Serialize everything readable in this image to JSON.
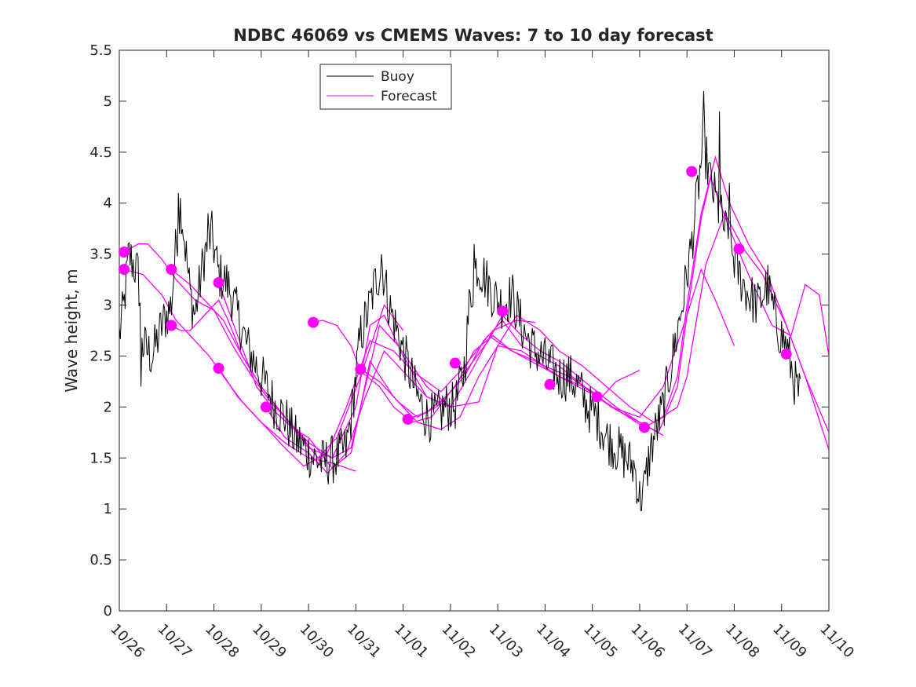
{
  "chart_data": {
    "type": "line",
    "title": "NDBC 46069 vs CMEMS Waves: 7 to 10 day forecast",
    "xlabel": "",
    "ylabel": "Wave height, m",
    "xlim": [
      0,
      15
    ],
    "ylim": [
      0,
      5.5
    ],
    "x_tick_labels": [
      "10/26",
      "10/27",
      "10/28",
      "10/29",
      "10/30",
      "10/31",
      "11/01",
      "11/02",
      "11/03",
      "11/04",
      "11/05",
      "11/06",
      "11/07",
      "11/08",
      "11/09",
      "11/10"
    ],
    "y_tick_labels": [
      "0",
      "0.5",
      "1",
      "1.5",
      "2",
      "2.5",
      "3",
      "3.5",
      "4",
      "4.5",
      "5",
      "5.5"
    ],
    "y_ticks": [
      0,
      0.5,
      1,
      1.5,
      2,
      2.5,
      3,
      3.5,
      4,
      4.5,
      5,
      5.5
    ],
    "grid": false,
    "legend": {
      "position": "top-left",
      "entries": [
        {
          "label": "Buoy",
          "color": "#000000"
        },
        {
          "label": "Forecast",
          "color": "#ff00ff"
        }
      ]
    },
    "colors": {
      "buoy": "#000000",
      "forecast": "#ff00ff",
      "axes": "#262626"
    },
    "buoy_anchors": [
      [
        0.0,
        2.7
      ],
      [
        0.1,
        3.0
      ],
      [
        0.2,
        3.5
      ],
      [
        0.4,
        3.3
      ],
      [
        0.5,
        2.6
      ],
      [
        0.7,
        2.5
      ],
      [
        0.9,
        2.8
      ],
      [
        1.1,
        3.0
      ],
      [
        1.2,
        3.6
      ],
      [
        1.3,
        4.0
      ],
      [
        1.5,
        3.1
      ],
      [
        1.6,
        2.9
      ],
      [
        1.8,
        3.5
      ],
      [
        1.95,
        3.7
      ],
      [
        2.1,
        3.3
      ],
      [
        2.3,
        3.2
      ],
      [
        2.5,
        2.9
      ],
      [
        2.7,
        2.6
      ],
      [
        2.9,
        2.4
      ],
      [
        3.1,
        2.2
      ],
      [
        3.3,
        2.0
      ],
      [
        3.5,
        1.9
      ],
      [
        3.7,
        1.7
      ],
      [
        3.9,
        1.6
      ],
      [
        4.1,
        1.5
      ],
      [
        4.3,
        1.45
      ],
      [
        4.6,
        1.5
      ],
      [
        4.8,
        1.6
      ],
      [
        4.9,
        1.9
      ],
      [
        5.0,
        2.3
      ],
      [
        5.1,
        2.7
      ],
      [
        5.3,
        3.0
      ],
      [
        5.4,
        3.2
      ],
      [
        5.55,
        3.4
      ],
      [
        5.7,
        3.0
      ],
      [
        5.9,
        2.7
      ],
      [
        6.1,
        2.4
      ],
      [
        6.3,
        2.1
      ],
      [
        6.5,
        1.9
      ],
      [
        6.7,
        1.9
      ],
      [
        6.9,
        2.0
      ],
      [
        7.1,
        2.0
      ],
      [
        7.3,
        2.4
      ],
      [
        7.4,
        3.0
      ],
      [
        7.55,
        3.4
      ],
      [
        7.7,
        3.3
      ],
      [
        7.9,
        3.1
      ],
      [
        8.1,
        3.0
      ],
      [
        8.3,
        3.1
      ],
      [
        8.5,
        2.8
      ],
      [
        8.7,
        2.6
      ],
      [
        8.9,
        2.5
      ],
      [
        9.1,
        2.4
      ],
      [
        9.3,
        2.3
      ],
      [
        9.5,
        2.3
      ],
      [
        9.7,
        2.2
      ],
      [
        9.9,
        2.0
      ],
      [
        10.1,
        1.9
      ],
      [
        10.3,
        1.7
      ],
      [
        10.5,
        1.6
      ],
      [
        10.7,
        1.5
      ],
      [
        10.9,
        1.4
      ],
      [
        11.0,
        1.1
      ],
      [
        11.1,
        1.2
      ],
      [
        11.2,
        1.5
      ],
      [
        11.3,
        1.7
      ],
      [
        11.5,
        2.0
      ],
      [
        11.7,
        2.5
      ],
      [
        11.9,
        3.0
      ],
      [
        12.1,
        3.6
      ],
      [
        12.2,
        4.0
      ],
      [
        12.35,
        4.6
      ],
      [
        12.5,
        4.2
      ],
      [
        12.7,
        3.9
      ],
      [
        12.9,
        3.6
      ],
      [
        13.1,
        3.3
      ],
      [
        13.3,
        3.1
      ],
      [
        13.5,
        3.0
      ],
      [
        13.7,
        3.2
      ],
      [
        13.9,
        2.8
      ],
      [
        14.1,
        2.6
      ],
      [
        14.3,
        2.2
      ],
      [
        14.4,
        2.1
      ]
    ],
    "buoy_spikes": [
      [
        1.25,
        4.1
      ],
      [
        1.88,
        3.9
      ],
      [
        12.35,
        5.1
      ],
      [
        12.68,
        4.9
      ],
      [
        7.5,
        3.6
      ],
      [
        5.55,
        3.5
      ],
      [
        12.9,
        4.2
      ],
      [
        0.45,
        2.2
      ],
      [
        10.95,
        1.1
      ]
    ],
    "forecast_series": [
      [
        [
          0.1,
          3.35
        ],
        [
          0.5,
          3.3
        ],
        [
          0.9,
          3.1
        ],
        [
          1.2,
          2.85
        ],
        [
          1.5,
          2.7
        ],
        [
          1.9,
          2.5
        ],
        [
          2.2,
          2.3
        ],
        [
          2.6,
          2.05
        ],
        [
          3.0,
          1.85
        ],
        [
          3.5,
          1.65
        ],
        [
          4.0,
          1.5
        ],
        [
          4.5,
          1.45
        ],
        [
          5.0,
          1.37
        ]
      ],
      [
        [
          0.1,
          3.52
        ],
        [
          0.4,
          3.6
        ],
        [
          0.6,
          3.6
        ],
        [
          0.9,
          3.45
        ],
        [
          1.2,
          3.25
        ],
        [
          1.6,
          3.05
        ],
        [
          2.0,
          2.95
        ],
        [
          2.4,
          2.6
        ],
        [
          2.8,
          2.3
        ],
        [
          3.2,
          2.05
        ],
        [
          3.7,
          1.8
        ],
        [
          4.2,
          1.5
        ],
        [
          4.6,
          1.7
        ],
        [
          5.1,
          2.3
        ],
        [
          5.6,
          3.0
        ],
        [
          6.0,
          2.75
        ]
      ],
      [
        [
          1.1,
          2.8
        ],
        [
          1.3,
          2.75
        ],
        [
          1.5,
          2.75
        ],
        [
          1.8,
          2.9
        ],
        [
          2.1,
          3.05
        ],
        [
          2.3,
          2.85
        ],
        [
          2.6,
          2.5
        ],
        [
          3.0,
          2.2
        ],
        [
          3.5,
          1.9
        ],
        [
          4.0,
          1.65
        ],
        [
          4.5,
          1.5
        ],
        [
          4.9,
          1.6
        ],
        [
          5.2,
          2.2
        ],
        [
          5.5,
          2.8
        ],
        [
          5.9,
          2.6
        ],
        [
          6.5,
          2.2
        ],
        [
          7.0,
          2.0
        ]
      ],
      [
        [
          1.1,
          3.35
        ],
        [
          1.5,
          3.2
        ],
        [
          1.9,
          3.0
        ],
        [
          2.2,
          2.85
        ],
        [
          2.6,
          2.5
        ],
        [
          3.0,
          2.2
        ],
        [
          3.5,
          1.9
        ],
        [
          4.0,
          1.6
        ],
        [
          4.5,
          1.5
        ],
        [
          5.0,
          2.0
        ],
        [
          5.3,
          2.8
        ],
        [
          5.6,
          2.9
        ],
        [
          6.0,
          2.5
        ],
        [
          6.5,
          2.1
        ],
        [
          7.0,
          2.0
        ],
        [
          7.5,
          2.4
        ],
        [
          7.9,
          2.75
        ],
        [
          8.4,
          2.85
        ],
        [
          8.8,
          2.83
        ]
      ],
      [
        [
          2.1,
          2.38
        ],
        [
          2.5,
          2.1
        ],
        [
          3.0,
          1.85
        ],
        [
          3.5,
          1.6
        ],
        [
          3.9,
          1.42
        ],
        [
          4.4,
          1.55
        ],
        [
          4.8,
          2.0
        ],
        [
          5.3,
          2.65
        ],
        [
          5.8,
          2.55
        ],
        [
          6.2,
          2.35
        ],
        [
          6.8,
          2.15
        ],
        [
          7.3,
          2.4
        ],
        [
          7.8,
          2.7
        ],
        [
          8.3,
          2.55
        ],
        [
          8.8,
          2.45
        ],
        [
          9.3,
          2.3
        ],
        [
          9.8,
          2.2
        ],
        [
          10.4,
          2.0
        ],
        [
          11.0,
          1.85
        ],
        [
          11.5,
          1.72
        ]
      ],
      [
        [
          2.1,
          3.22
        ],
        [
          2.5,
          2.7
        ],
        [
          2.9,
          2.2
        ],
        [
          3.3,
          1.95
        ],
        [
          3.7,
          1.78
        ],
        [
          4.0,
          1.7
        ],
        [
          4.5,
          1.4
        ],
        [
          4.9,
          1.55
        ],
        [
          5.3,
          2.45
        ],
        [
          5.8,
          2.1
        ],
        [
          6.3,
          1.85
        ],
        [
          6.8,
          1.78
        ],
        [
          7.2,
          1.9
        ],
        [
          7.6,
          2.3
        ],
        [
          8.0,
          2.6
        ],
        [
          8.5,
          2.55
        ],
        [
          9.0,
          2.4
        ],
        [
          9.5,
          2.3
        ],
        [
          10.0,
          2.15
        ],
        [
          10.4,
          2.0
        ],
        [
          11.0,
          1.9
        ],
        [
          11.5,
          2.2
        ],
        [
          12.0,
          2.9
        ],
        [
          12.3,
          3.35
        ],
        [
          12.6,
          3.05
        ],
        [
          13.0,
          2.6
        ]
      ],
      [
        [
          3.1,
          2.0
        ],
        [
          3.5,
          1.7
        ],
        [
          4.0,
          1.55
        ],
        [
          4.4,
          1.35
        ],
        [
          4.8,
          1.55
        ],
        [
          5.2,
          2.1
        ],
        [
          5.6,
          2.55
        ],
        [
          6.0,
          2.35
        ],
        [
          6.5,
          2.1
        ],
        [
          7.0,
          2.0
        ],
        [
          7.6,
          2.05
        ],
        [
          8.0,
          2.6
        ],
        [
          8.4,
          2.9
        ],
        [
          8.9,
          2.75
        ],
        [
          9.3,
          2.55
        ],
        [
          9.8,
          2.4
        ],
        [
          10.3,
          2.2
        ],
        [
          10.8,
          2.0
        ],
        [
          11.3,
          1.85
        ],
        [
          11.8,
          2.0
        ],
        [
          12.0,
          2.3
        ],
        [
          12.4,
          3.4
        ],
        [
          12.8,
          3.9
        ],
        [
          13.2,
          3.55
        ],
        [
          13.6,
          3.3
        ],
        [
          14.1,
          2.8
        ],
        [
          14.5,
          2.3
        ],
        [
          15.0,
          1.58
        ]
      ],
      [
        [
          4.1,
          2.83
        ],
        [
          4.3,
          2.85
        ],
        [
          4.6,
          2.8
        ],
        [
          4.9,
          2.6
        ],
        [
          5.1,
          2.35
        ],
        [
          5.5,
          2.2
        ],
        [
          5.8,
          2.0
        ],
        [
          6.2,
          1.85
        ],
        [
          6.6,
          1.9
        ],
        [
          7.0,
          2.15
        ],
        [
          7.4,
          2.4
        ],
        [
          7.8,
          2.65
        ],
        [
          8.1,
          2.9
        ],
        [
          8.5,
          2.7
        ],
        [
          8.9,
          2.55
        ],
        [
          9.3,
          2.45
        ],
        [
          9.7,
          2.3
        ],
        [
          10.1,
          2.15
        ],
        [
          10.5,
          2.0
        ],
        [
          11.0,
          1.85
        ],
        [
          11.4,
          1.75
        ],
        [
          11.8,
          2.2
        ],
        [
          12.0,
          2.9
        ],
        [
          12.3,
          3.85
        ],
        [
          12.5,
          4.25
        ],
        [
          12.9,
          3.75
        ],
        [
          13.3,
          3.3
        ],
        [
          13.8,
          2.8
        ],
        [
          14.2,
          2.7
        ],
        [
          14.5,
          3.2
        ],
        [
          14.8,
          3.1
        ],
        [
          15.0,
          2.5
        ]
      ],
      [
        [
          5.1,
          2.37
        ],
        [
          5.5,
          2.25
        ],
        [
          5.9,
          2.05
        ],
        [
          6.3,
          1.9
        ],
        [
          6.7,
          2.0
        ],
        [
          7.1,
          2.2
        ],
        [
          7.5,
          2.55
        ],
        [
          7.9,
          2.7
        ],
        [
          8.3,
          2.55
        ],
        [
          8.7,
          2.45
        ],
        [
          9.1,
          2.35
        ],
        [
          9.5,
          2.25
        ],
        [
          9.9,
          2.15
        ],
        [
          10.2,
          2.1
        ],
        [
          10.5,
          2.25
        ],
        [
          11.0,
          2.36
        ]
      ],
      [
        [
          6.1,
          1.88
        ],
        [
          6.5,
          1.95
        ],
        [
          6.9,
          2.1
        ],
        [
          7.3,
          2.3
        ],
        [
          7.7,
          2.65
        ],
        [
          8.1,
          2.85
        ],
        [
          8.5,
          2.6
        ],
        [
          8.9,
          2.5
        ],
        [
          9.3,
          2.4
        ],
        [
          9.7,
          2.25
        ],
        [
          10.1,
          2.1
        ],
        [
          10.6,
          1.95
        ],
        [
          11.1,
          1.8
        ],
        [
          11.5,
          1.9
        ],
        [
          11.8,
          2.3
        ],
        [
          12.0,
          3.0
        ],
        [
          12.3,
          3.9
        ],
        [
          12.6,
          4.45
        ],
        [
          12.9,
          4.0
        ],
        [
          13.3,
          3.6
        ],
        [
          13.7,
          3.3
        ],
        [
          14.1,
          2.8
        ],
        [
          14.5,
          2.3
        ],
        [
          15.0,
          1.75
        ]
      ]
    ],
    "forecast_markers": [
      [
        0.1,
        3.52
      ],
      [
        0.1,
        3.35
      ],
      [
        1.1,
        3.35
      ],
      [
        1.1,
        2.8
      ],
      [
        2.1,
        3.22
      ],
      [
        2.1,
        2.38
      ],
      [
        3.1,
        2.0
      ],
      [
        4.1,
        2.83
      ],
      [
        5.1,
        2.37
      ],
      [
        6.1,
        1.88
      ],
      [
        7.1,
        2.43
      ],
      [
        8.1,
        2.94
      ],
      [
        9.1,
        2.22
      ],
      [
        10.1,
        2.1
      ],
      [
        11.1,
        1.8
      ],
      [
        12.1,
        4.31
      ],
      [
        13.1,
        3.55
      ],
      [
        14.1,
        2.52
      ]
    ]
  }
}
